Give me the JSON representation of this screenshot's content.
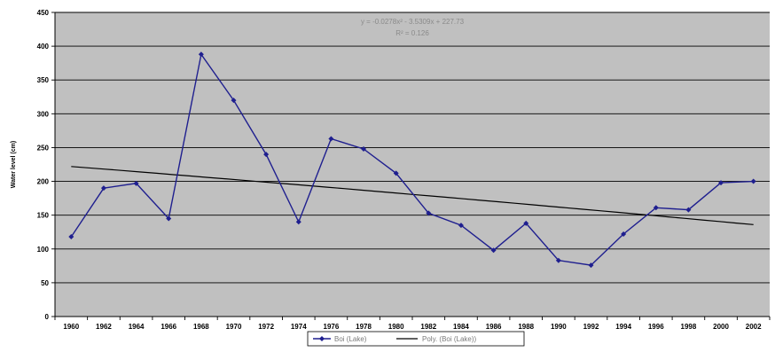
{
  "chart_data": {
    "type": "line",
    "title": "",
    "xlabel": "",
    "ylabel": "Water level (cm)",
    "x": [
      1960,
      1962,
      1964,
      1966,
      1968,
      1970,
      1972,
      1974,
      1976,
      1978,
      1980,
      1982,
      1984,
      1986,
      1988,
      1990,
      1992,
      1994,
      1996,
      1998,
      2000,
      2002
    ],
    "x_tick_labels": [
      "1960",
      "1962",
      "1964",
      "1966",
      "1968",
      "1970",
      "1972",
      "1974",
      "1976",
      "1978",
      "1980",
      "1982",
      "1984",
      "1986",
      "1988",
      "1990",
      "1992",
      "1994",
      "1996",
      "1998",
      "2000",
      "2002"
    ],
    "ylim": [
      0,
      450
    ],
    "y_ticks": [
      0,
      50,
      100,
      150,
      200,
      250,
      300,
      350,
      400,
      450
    ],
    "y_tick_labels": [
      "0",
      "50",
      "100",
      "150",
      "200",
      "250",
      "300",
      "350",
      "400",
      "450"
    ],
    "grid": true,
    "series": [
      {
        "name": "Boi (Lake)",
        "color": "#1f1f8f",
        "marker": "diamond",
        "values": [
          118,
          190,
          197,
          145,
          388,
          320,
          240,
          140,
          263,
          248,
          212,
          153,
          135,
          98,
          138,
          83,
          76,
          122,
          161,
          158,
          198,
          200
        ]
      }
    ],
    "trendline": {
      "name": "Poly. (Boi (Lake))",
      "color": "#000000",
      "equation": "y = -0.0278x² - 3.5309x + 227.73",
      "r_squared": "R² = 0.126",
      "start_value": 222,
      "end_value": 136
    },
    "legend": {
      "placement": "bottom-center",
      "entries": [
        "Boi (Lake)",
        "Poly. (Boi (Lake))"
      ]
    },
    "plot_background": "#c0c0c0"
  }
}
